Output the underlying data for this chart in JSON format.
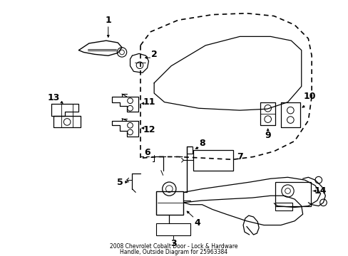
{
  "background_color": "#ffffff",
  "line_color": "#000000",
  "text_color": "#000000",
  "fig_width": 4.89,
  "fig_height": 3.6,
  "dpi": 100
}
